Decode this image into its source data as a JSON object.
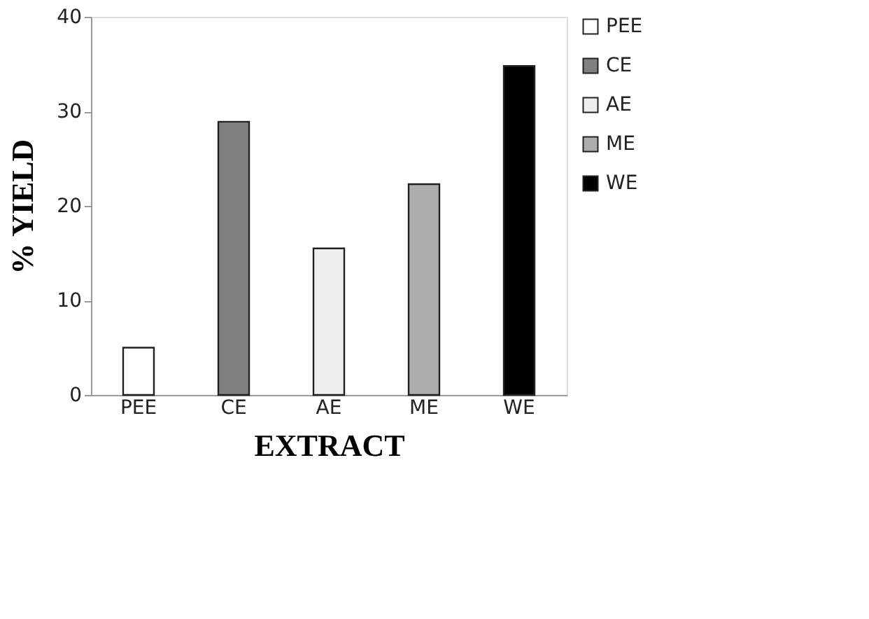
{
  "chart_data": {
    "type": "bar",
    "categories": [
      "PEE",
      "CE",
      "AE",
      "ME",
      "WE"
    ],
    "series": [
      {
        "name": "PEE",
        "color": "#ffffff",
        "values": [
          5.0,
          null,
          null,
          null,
          null
        ]
      },
      {
        "name": "CE",
        "color": "#808080",
        "values": [
          null,
          28.9,
          null,
          null,
          null
        ]
      },
      {
        "name": "AE",
        "color": "#eeeeee",
        "values": [
          null,
          null,
          15.5,
          null,
          null
        ]
      },
      {
        "name": "ME",
        "color": "#adadad",
        "values": [
          null,
          null,
          null,
          22.3,
          null
        ]
      },
      {
        "name": "WE",
        "color": "#000000",
        "values": [
          null,
          null,
          null,
          null,
          34.8
        ]
      }
    ],
    "xlabel": "EXTRACT",
    "ylabel": "% YIELD",
    "ylim": [
      0,
      40
    ],
    "yticks": [
      0,
      10,
      20,
      30,
      40
    ],
    "grid": false,
    "legend": "right"
  }
}
